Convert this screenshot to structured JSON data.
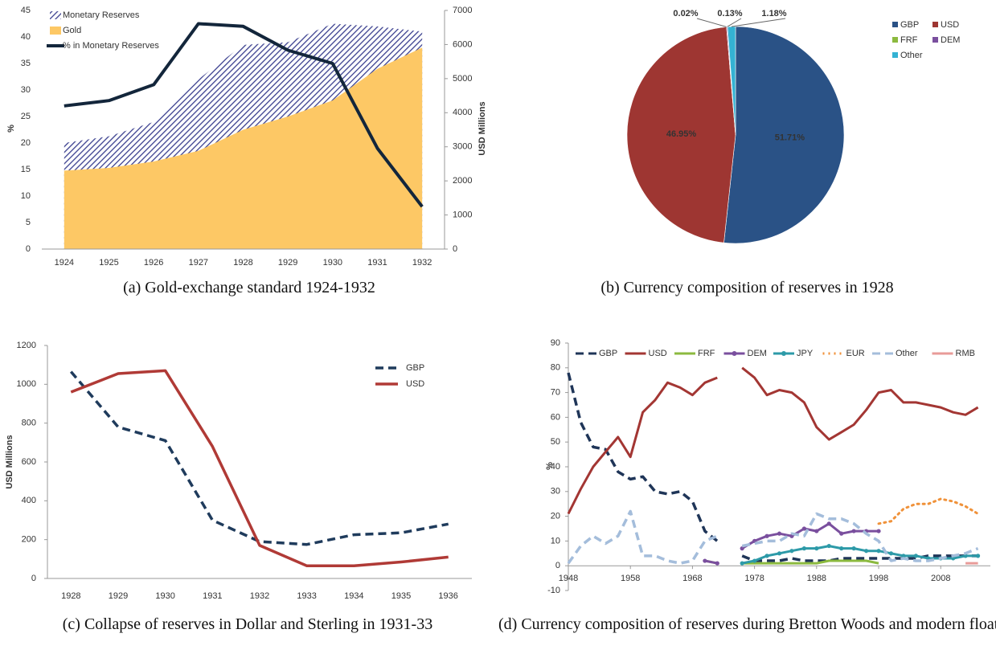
{
  "chart_data": [
    {
      "type": "area",
      "caption": "(a) Gold-exchange standard 1924-1932",
      "ylabel": "%",
      "y2label": "USD Millions",
      "categories": [
        "1924",
        "1925",
        "1926",
        "1927",
        "1928",
        "1929",
        "1930",
        "1931",
        "1932"
      ],
      "series": [
        {
          "name": "Monetary Reserves",
          "color": "#3a3f8f",
          "fill": "hatch",
          "kind": "area",
          "axis": "y2",
          "values": [
            3110,
            3310,
            3730,
            4980,
            5990,
            6070,
            6610,
            6530,
            6380
          ]
        },
        {
          "name": "Gold",
          "color": "#fdc865",
          "fill": "solid",
          "kind": "area",
          "axis": "y2",
          "values": [
            2300,
            2380,
            2570,
            2880,
            3500,
            3890,
            4360,
            5290,
            5910
          ]
        },
        {
          "name": "% in Monetary Reserves",
          "color": "#13263b",
          "kind": "line",
          "values": [
            27,
            28,
            31,
            42.5,
            42,
            37.5,
            35,
            19,
            8
          ]
        }
      ],
      "ylim": [
        0,
        45
      ],
      "yticks": [
        0,
        5,
        10,
        15,
        20,
        25,
        30,
        35,
        40,
        45
      ],
      "y2lim": [
        0,
        7000
      ],
      "y2ticks": [
        0,
        1000,
        2000,
        3000,
        4000,
        5000,
        6000,
        7000
      ],
      "legend": "upper left"
    },
    {
      "type": "pie",
      "caption": "(b) Currency composition of reserves in 1928",
      "categories": [
        "GBP",
        "USD",
        "FRF",
        "DEM",
        "Other"
      ],
      "values": [
        51.71,
        46.95,
        0.02,
        0.13,
        1.18
      ],
      "value_labels": [
        "51.71%",
        "46.95%",
        "0.02%",
        "0.13%",
        "1.18%"
      ],
      "colors": [
        "#2a5286",
        "#9e3632",
        "#8cba3f",
        "#7a4f9e",
        "#34b2d3"
      ],
      "legend": "upper right"
    },
    {
      "type": "line",
      "caption": "(c) Collapse of reserves in Dollar and Sterling in 1931-33",
      "ylabel": "USD Millions",
      "categories": [
        "1928",
        "1929",
        "1930",
        "1931",
        "1932",
        "1933",
        "1934",
        "1935",
        "1936"
      ],
      "series": [
        {
          "name": "GBP",
          "color": "#1f3b5c",
          "style": "dashed",
          "values": [
            1065,
            780,
            710,
            300,
            190,
            175,
            225,
            235,
            280
          ]
        },
        {
          "name": "USD",
          "color": "#b03a36",
          "style": "solid",
          "values": [
            960,
            1055,
            1070,
            680,
            170,
            65,
            65,
            85,
            110
          ]
        }
      ],
      "ylim": [
        0,
        1200
      ],
      "yticks": [
        0,
        200,
        400,
        600,
        800,
        1000,
        1200
      ],
      "legend": "upper right"
    },
    {
      "type": "line",
      "caption": "(d) Currency composition of reserves during Bretton Woods and modern float",
      "ylabel": "%",
      "x": [
        1948,
        1950,
        1952,
        1954,
        1956,
        1958,
        1960,
        1962,
        1964,
        1966,
        1968,
        1970,
        1972,
        1974,
        1976,
        1978,
        1980,
        1982,
        1984,
        1986,
        1988,
        1990,
        1992,
        1994,
        1996,
        1998,
        2000,
        2002,
        2004,
        2006,
        2008,
        2010,
        2012,
        2014
      ],
      "series": [
        {
          "name": "GBP",
          "color": "#1f3558",
          "style": "dashed",
          "values": [
            78,
            58,
            48,
            47,
            38,
            35,
            36,
            30,
            29,
            30,
            26,
            14,
            10,
            null,
            4,
            2,
            2,
            2,
            3,
            2,
            2,
            2,
            3,
            3,
            3,
            3,
            3,
            3,
            3,
            4,
            4,
            4,
            4,
            4
          ]
        },
        {
          "name": "USD",
          "color": "#a33633",
          "style": "solid",
          "values": [
            21,
            31,
            40,
            46,
            52,
            44,
            62,
            67,
            74,
            72,
            69,
            74,
            76,
            null,
            80,
            76,
            69,
            71,
            70,
            66,
            56,
            51,
            54,
            57,
            63,
            70,
            71,
            66,
            66,
            65,
            64,
            62,
            61,
            64
          ]
        },
        {
          "name": "FRF",
          "color": "#8cba3f",
          "style": "solid",
          "values": [
            null,
            null,
            null,
            null,
            null,
            null,
            null,
            null,
            null,
            null,
            null,
            2,
            1,
            null,
            1,
            1,
            1,
            1,
            1,
            1,
            1,
            2,
            2,
            2,
            2,
            1,
            null,
            null,
            null,
            null,
            null,
            null,
            null,
            null
          ]
        },
        {
          "name": "DEM",
          "color": "#7a4f9e",
          "style": "solid",
          "marker": true,
          "values": [
            null,
            null,
            null,
            null,
            null,
            null,
            null,
            null,
            null,
            null,
            null,
            2,
            1,
            null,
            7,
            10,
            12,
            13,
            12,
            15,
            14,
            17,
            13,
            14,
            14,
            14,
            null,
            null,
            null,
            null,
            null,
            null,
            null,
            null
          ]
        },
        {
          "name": "JPY",
          "color": "#2d9aa8",
          "style": "solid",
          "marker": true,
          "values": [
            null,
            null,
            null,
            null,
            null,
            null,
            null,
            null,
            null,
            null,
            null,
            null,
            null,
            null,
            1,
            2,
            4,
            5,
            6,
            7,
            7,
            8,
            7,
            7,
            6,
            6,
            5,
            4,
            4,
            3,
            3,
            3,
            4,
            4
          ]
        },
        {
          "name": "EUR",
          "color": "#f0923a",
          "style": "dotted",
          "values": [
            null,
            null,
            null,
            null,
            null,
            null,
            null,
            null,
            null,
            null,
            null,
            null,
            null,
            null,
            null,
            null,
            null,
            null,
            null,
            null,
            null,
            null,
            null,
            null,
            null,
            17,
            18,
            23,
            25,
            25,
            27,
            26,
            24,
            21
          ]
        },
        {
          "name": "Other",
          "color": "#a4bddb",
          "style": "dashed",
          "values": [
            1,
            8,
            12,
            9,
            12,
            22,
            4,
            4,
            2,
            1,
            2,
            10,
            12,
            null,
            8,
            9,
            10,
            10,
            13,
            12,
            21,
            19,
            19,
            17,
            13,
            10,
            2,
            3,
            2,
            2,
            3,
            4,
            5,
            7
          ]
        },
        {
          "name": "RMB",
          "color": "#e89b98",
          "style": "solid",
          "values": [
            null,
            null,
            null,
            null,
            null,
            null,
            null,
            null,
            null,
            null,
            null,
            null,
            null,
            null,
            null,
            null,
            null,
            null,
            null,
            null,
            null,
            null,
            null,
            null,
            null,
            null,
            null,
            null,
            null,
            null,
            null,
            null,
            1,
            1
          ]
        }
      ],
      "xlim": [
        1948,
        2016
      ],
      "xticks": [
        1948,
        1958,
        1968,
        1978,
        1988,
        1998,
        2008
      ],
      "ylim": [
        -10,
        90
      ],
      "yticks": [
        -10,
        0,
        10,
        20,
        30,
        40,
        50,
        60,
        70,
        80,
        90
      ],
      "legend": "top"
    }
  ]
}
